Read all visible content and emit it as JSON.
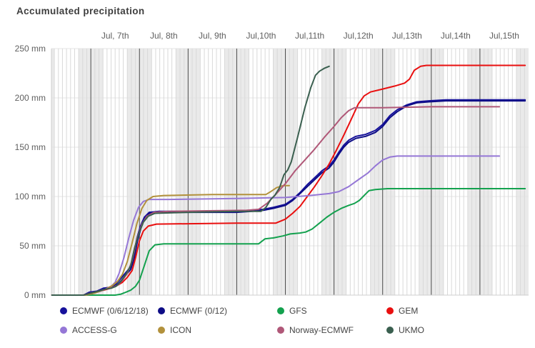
{
  "title": "Accumulated precipitation",
  "chart_data": {
    "type": "line",
    "title": "Accumulated precipitation",
    "x_axis": {
      "position": "top",
      "tick_labels": [
        {
          "day": 7.5,
          "label": "Jul, 7th"
        },
        {
          "day": 8.5,
          "label": "Jul, 8th"
        },
        {
          "day": 9.5,
          "label": "Jul, 9th"
        },
        {
          "day": 10.5,
          "label": "Jul,10th"
        },
        {
          "day": 11.5,
          "label": "Jul,11th"
        },
        {
          "day": 12.5,
          "label": "Jul,12th"
        },
        {
          "day": 13.5,
          "label": "Jul,13th"
        },
        {
          "day": 14.5,
          "label": "Jul,14th"
        },
        {
          "day": 15.5,
          "label": "Jul,15th"
        }
      ]
    },
    "y_axis": {
      "unit": "mm",
      "range": [
        0,
        250
      ],
      "ticks": [
        {
          "value": 0,
          "label": "0 mm"
        },
        {
          "value": 50,
          "label": "50 mm"
        },
        {
          "value": 100,
          "label": "100 mm"
        },
        {
          "value": 150,
          "label": "150 mm"
        },
        {
          "value": 200,
          "label": "200 mm"
        },
        {
          "value": 250,
          "label": "250 mm"
        }
      ]
    },
    "x_range_days": [
      6.19,
      16.0
    ],
    "gridline_interval_hours": 2,
    "night_band_hours": "18:00-06:00",
    "legend_position": "bottom",
    "plot_style": {
      "night_band_color": "#eaeaea",
      "vgrid_color": "#d9d9d9",
      "hgrid_color": "#e4e4e4",
      "midnight_line_color": "#4a4a4a",
      "edge_line_color": "#cfcfcf",
      "axis_text_color": "#606060"
    },
    "series": [
      {
        "name": "ECMWF (0/6/12/18)",
        "color": "#16119b",
        "points": [
          [
            6.2,
            0
          ],
          [
            6.85,
            0
          ],
          [
            6.97,
            3
          ],
          [
            7.12,
            4
          ],
          [
            7.26,
            7
          ],
          [
            7.41,
            8
          ],
          [
            7.51,
            11
          ],
          [
            7.62,
            17
          ],
          [
            7.72,
            23
          ],
          [
            7.81,
            28
          ],
          [
            7.88,
            40
          ],
          [
            7.95,
            58
          ],
          [
            8.02,
            70
          ],
          [
            8.1,
            79
          ],
          [
            8.2,
            84
          ],
          [
            8.4,
            85
          ],
          [
            10.0,
            85
          ],
          [
            10.3,
            86
          ],
          [
            10.55,
            87
          ],
          [
            10.75,
            89
          ],
          [
            11.0,
            92
          ],
          [
            11.15,
            97
          ],
          [
            11.3,
            104
          ],
          [
            11.45,
            112
          ],
          [
            11.6,
            119
          ],
          [
            11.75,
            126
          ],
          [
            11.9,
            131
          ],
          [
            12.0,
            137
          ],
          [
            12.1,
            145
          ],
          [
            12.2,
            152
          ],
          [
            12.3,
            157
          ],
          [
            12.45,
            161
          ],
          [
            12.65,
            163
          ],
          [
            12.85,
            167
          ],
          [
            13.0,
            173
          ],
          [
            13.15,
            182
          ],
          [
            13.3,
            188
          ],
          [
            13.5,
            193
          ],
          [
            13.7,
            196
          ],
          [
            13.95,
            197
          ],
          [
            14.3,
            198
          ],
          [
            15.93,
            198
          ]
        ]
      },
      {
        "name": "ECMWF (0/12)",
        "color": "#0d0c86",
        "points": [
          [
            6.2,
            0
          ],
          [
            6.85,
            0
          ],
          [
            7.0,
            2
          ],
          [
            7.15,
            4
          ],
          [
            7.28,
            6
          ],
          [
            7.42,
            8
          ],
          [
            7.53,
            10
          ],
          [
            7.63,
            15
          ],
          [
            7.73,
            21
          ],
          [
            7.82,
            26
          ],
          [
            7.89,
            37
          ],
          [
            7.96,
            55
          ],
          [
            8.03,
            68
          ],
          [
            8.1,
            77
          ],
          [
            8.2,
            83
          ],
          [
            8.4,
            84
          ],
          [
            10.0,
            84
          ],
          [
            10.3,
            85
          ],
          [
            10.55,
            86
          ],
          [
            10.75,
            88
          ],
          [
            11.0,
            91
          ],
          [
            11.15,
            96
          ],
          [
            11.3,
            103
          ],
          [
            11.45,
            110
          ],
          [
            11.6,
            117
          ],
          [
            11.75,
            124
          ],
          [
            11.9,
            129
          ],
          [
            12.0,
            135
          ],
          [
            12.1,
            143
          ],
          [
            12.2,
            150
          ],
          [
            12.3,
            155
          ],
          [
            12.45,
            159
          ],
          [
            12.65,
            161
          ],
          [
            12.85,
            165
          ],
          [
            13.0,
            171
          ],
          [
            13.15,
            180
          ],
          [
            13.3,
            186
          ],
          [
            13.5,
            192
          ],
          [
            13.7,
            195
          ],
          [
            13.95,
            196
          ],
          [
            14.3,
            197
          ],
          [
            15.93,
            197
          ]
        ]
      },
      {
        "name": "GFS",
        "color": "#13a14e",
        "points": [
          [
            6.2,
            0
          ],
          [
            7.5,
            0
          ],
          [
            7.62,
            1
          ],
          [
            7.72,
            3
          ],
          [
            7.82,
            5
          ],
          [
            7.92,
            9
          ],
          [
            8.0,
            15
          ],
          [
            8.1,
            30
          ],
          [
            8.2,
            45
          ],
          [
            8.32,
            51
          ],
          [
            8.5,
            52
          ],
          [
            10.45,
            52
          ],
          [
            10.58,
            57
          ],
          [
            10.75,
            58
          ],
          [
            10.95,
            60
          ],
          [
            11.1,
            62
          ],
          [
            11.3,
            63
          ],
          [
            11.42,
            64
          ],
          [
            11.55,
            67
          ],
          [
            11.7,
            73
          ],
          [
            11.85,
            79
          ],
          [
            12.0,
            84
          ],
          [
            12.15,
            88
          ],
          [
            12.3,
            91
          ],
          [
            12.42,
            93
          ],
          [
            12.52,
            96
          ],
          [
            12.62,
            101
          ],
          [
            12.72,
            106
          ],
          [
            12.85,
            107
          ],
          [
            13.1,
            108
          ],
          [
            15.93,
            108
          ]
        ]
      },
      {
        "name": "GEM",
        "color": "#e90f0f",
        "points": [
          [
            6.2,
            0
          ],
          [
            6.85,
            0
          ],
          [
            7.0,
            2
          ],
          [
            7.26,
            5
          ],
          [
            7.41,
            7
          ],
          [
            7.55,
            10
          ],
          [
            7.65,
            13
          ],
          [
            7.75,
            18
          ],
          [
            7.85,
            25
          ],
          [
            7.92,
            38
          ],
          [
            8.0,
            55
          ],
          [
            8.08,
            65
          ],
          [
            8.18,
            70
          ],
          [
            8.35,
            72
          ],
          [
            10.0,
            73
          ],
          [
            10.8,
            73
          ],
          [
            11.0,
            77
          ],
          [
            11.15,
            83
          ],
          [
            11.3,
            90
          ],
          [
            11.45,
            100
          ],
          [
            11.6,
            110
          ],
          [
            11.75,
            121
          ],
          [
            11.9,
            133
          ],
          [
            12.05,
            147
          ],
          [
            12.2,
            162
          ],
          [
            12.35,
            178
          ],
          [
            12.5,
            194
          ],
          [
            12.62,
            202
          ],
          [
            12.75,
            206
          ],
          [
            13.0,
            209
          ],
          [
            13.25,
            212
          ],
          [
            13.45,
            215
          ],
          [
            13.55,
            219
          ],
          [
            13.65,
            228
          ],
          [
            13.78,
            232
          ],
          [
            13.9,
            233
          ],
          [
            15.93,
            233
          ]
        ]
      },
      {
        "name": "ACCESS-G",
        "color": "#9577d6",
        "points": [
          [
            6.2,
            0
          ],
          [
            6.9,
            0
          ],
          [
            7.05,
            2
          ],
          [
            7.2,
            4
          ],
          [
            7.3,
            6
          ],
          [
            7.42,
            9
          ],
          [
            7.5,
            13
          ],
          [
            7.58,
            22
          ],
          [
            7.68,
            38
          ],
          [
            7.78,
            58
          ],
          [
            7.88,
            76
          ],
          [
            7.98,
            89
          ],
          [
            8.08,
            95
          ],
          [
            8.2,
            97
          ],
          [
            8.6,
            97
          ],
          [
            10.0,
            98
          ],
          [
            11.0,
            99
          ],
          [
            11.5,
            101
          ],
          [
            11.9,
            103
          ],
          [
            12.1,
            105
          ],
          [
            12.3,
            110
          ],
          [
            12.5,
            117
          ],
          [
            12.7,
            124
          ],
          [
            12.85,
            131
          ],
          [
            13.0,
            137
          ],
          [
            13.15,
            140
          ],
          [
            13.3,
            141
          ],
          [
            15.4,
            141
          ]
        ]
      },
      {
        "name": "ICON",
        "color": "#b2913c",
        "points": [
          [
            6.2,
            0
          ],
          [
            6.9,
            0
          ],
          [
            7.08,
            2
          ],
          [
            7.3,
            6
          ],
          [
            7.45,
            10
          ],
          [
            7.55,
            14
          ],
          [
            7.65,
            21
          ],
          [
            7.75,
            34
          ],
          [
            7.85,
            53
          ],
          [
            7.95,
            73
          ],
          [
            8.05,
            88
          ],
          [
            8.15,
            96
          ],
          [
            8.28,
            100
          ],
          [
            8.5,
            101
          ],
          [
            9.5,
            102
          ],
          [
            10.6,
            102
          ],
          [
            10.7,
            105
          ],
          [
            10.82,
            109
          ],
          [
            10.95,
            111
          ],
          [
            11.08,
            111
          ]
        ]
      },
      {
        "name": "Norway-ECMWF",
        "color": "#b05878",
        "points": [
          [
            6.2,
            0
          ],
          [
            6.85,
            0
          ],
          [
            7.0,
            2
          ],
          [
            7.15,
            4
          ],
          [
            7.3,
            6
          ],
          [
            7.45,
            8
          ],
          [
            7.55,
            10
          ],
          [
            7.65,
            15
          ],
          [
            7.75,
            22
          ],
          [
            7.85,
            35
          ],
          [
            7.95,
            57
          ],
          [
            8.05,
            72
          ],
          [
            8.15,
            80
          ],
          [
            8.3,
            84
          ],
          [
            8.6,
            85
          ],
          [
            10.2,
            86
          ],
          [
            10.45,
            87
          ],
          [
            10.62,
            93
          ],
          [
            10.8,
            102
          ],
          [
            11.0,
            113
          ],
          [
            11.2,
            126
          ],
          [
            11.4,
            137
          ],
          [
            11.6,
            148
          ],
          [
            11.8,
            160
          ],
          [
            12.0,
            171
          ],
          [
            12.15,
            180
          ],
          [
            12.3,
            187
          ],
          [
            12.42,
            190
          ],
          [
            13.0,
            190
          ],
          [
            14.0,
            191
          ],
          [
            15.4,
            191
          ]
        ]
      },
      {
        "name": "UKMO",
        "color": "#3a5f4f",
        "points": [
          [
            6.2,
            0
          ],
          [
            6.85,
            0
          ],
          [
            7.0,
            2
          ],
          [
            7.15,
            4
          ],
          [
            7.3,
            6
          ],
          [
            7.42,
            7
          ],
          [
            7.52,
            9
          ],
          [
            7.62,
            14
          ],
          [
            7.72,
            21
          ],
          [
            7.82,
            30
          ],
          [
            7.9,
            48
          ],
          [
            8.0,
            64
          ],
          [
            8.08,
            74
          ],
          [
            8.18,
            80
          ],
          [
            8.32,
            83
          ],
          [
            9.0,
            84
          ],
          [
            10.0,
            85
          ],
          [
            10.5,
            85
          ],
          [
            10.6,
            89
          ],
          [
            10.7,
            97
          ],
          [
            10.78,
            101
          ],
          [
            10.88,
            109
          ],
          [
            10.97,
            122
          ],
          [
            11.05,
            127
          ],
          [
            11.12,
            135
          ],
          [
            11.25,
            160
          ],
          [
            11.4,
            190
          ],
          [
            11.52,
            210
          ],
          [
            11.62,
            223
          ],
          [
            11.7,
            227
          ],
          [
            11.8,
            230
          ],
          [
            11.9,
            232
          ]
        ]
      }
    ]
  }
}
